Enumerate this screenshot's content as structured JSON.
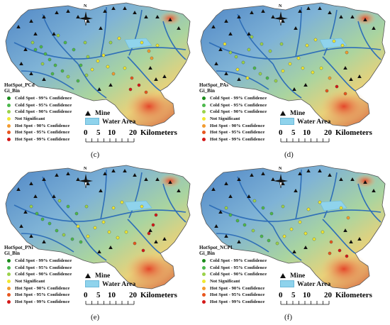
{
  "legend": {
    "gi_label": "Gi_Bin",
    "items": [
      {
        "label": "Cold Spot - 99% Confidence",
        "color": "#1a8a1a"
      },
      {
        "label": "Cold Spot - 95% Confidence",
        "color": "#4cb84c"
      },
      {
        "label": "Cold Spot - 90% Confidence",
        "color": "#9bd24a"
      },
      {
        "label": "Not Significant",
        "color": "#f0e830"
      },
      {
        "label": "Hot Spot - 90% Confidence",
        "color": "#f29b30"
      },
      {
        "label": "Hot Spot - 95% Confidence",
        "color": "#e8561e"
      },
      {
        "label": "Hot Spot - 99% Confidence",
        "color": "#d41818"
      }
    ],
    "mine_label": "Mine",
    "water_label": "Water Area"
  },
  "north_label": "N",
  "scale": {
    "ticks": [
      "0",
      "5",
      "10",
      "20"
    ],
    "unit": "Kilometers"
  },
  "panels": [
    {
      "id": "c",
      "title": "HotSpot_PCd",
      "label": "(c)"
    },
    {
      "id": "d",
      "title": "HotSpot_PAs",
      "label": "(d)"
    },
    {
      "id": "e",
      "title": "HotSpot_PNi",
      "label": "(e)"
    },
    {
      "id": "f",
      "title": "HotSpot_NCPI",
      "label": "(f)"
    }
  ]
}
